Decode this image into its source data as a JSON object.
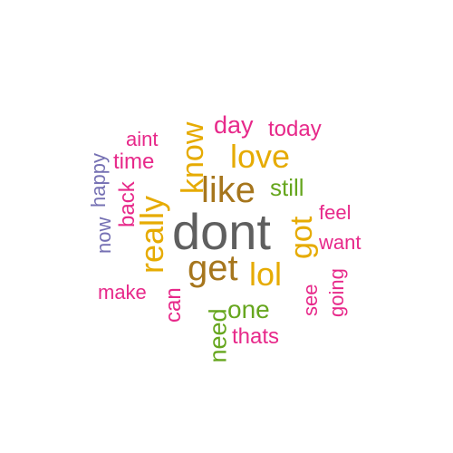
{
  "wordcloud": {
    "words": [
      {
        "id": "dont",
        "text": "dont",
        "color": "#5f5f5f"
      },
      {
        "id": "like",
        "text": "like",
        "color": "#a6761d"
      },
      {
        "id": "get",
        "text": "get",
        "color": "#a6761d"
      },
      {
        "id": "love",
        "text": "love",
        "color": "#e6ab02"
      },
      {
        "id": "lol",
        "text": "lol",
        "color": "#e6ab02"
      },
      {
        "id": "know",
        "text": "know",
        "color": "#e6ab02"
      },
      {
        "id": "really",
        "text": "really",
        "color": "#e6ab02"
      },
      {
        "id": "got",
        "text": "got",
        "color": "#e6ab02"
      },
      {
        "id": "day",
        "text": "day",
        "color": "#e7298a"
      },
      {
        "id": "today",
        "text": "today",
        "color": "#e7298a"
      },
      {
        "id": "aint",
        "text": "aint",
        "color": "#e7298a"
      },
      {
        "id": "time",
        "text": "time",
        "color": "#e7298a"
      },
      {
        "id": "back",
        "text": "back",
        "color": "#e7298a"
      },
      {
        "id": "feel",
        "text": "feel",
        "color": "#e7298a"
      },
      {
        "id": "want",
        "text": "want",
        "color": "#e7298a"
      },
      {
        "id": "make",
        "text": "make",
        "color": "#e7298a"
      },
      {
        "id": "can",
        "text": "can",
        "color": "#e7298a"
      },
      {
        "id": "see",
        "text": "see",
        "color": "#e7298a"
      },
      {
        "id": "going",
        "text": "going",
        "color": "#e7298a"
      },
      {
        "id": "thats",
        "text": "thats",
        "color": "#e7298a"
      },
      {
        "id": "still",
        "text": "still",
        "color": "#66a61e"
      },
      {
        "id": "one",
        "text": "one",
        "color": "#66a61e"
      },
      {
        "id": "need",
        "text": "need",
        "color": "#66a61e"
      },
      {
        "id": "happy",
        "text": "happy",
        "color": "#7570b3"
      },
      {
        "id": "now",
        "text": "now",
        "color": "#7570b3"
      }
    ]
  }
}
